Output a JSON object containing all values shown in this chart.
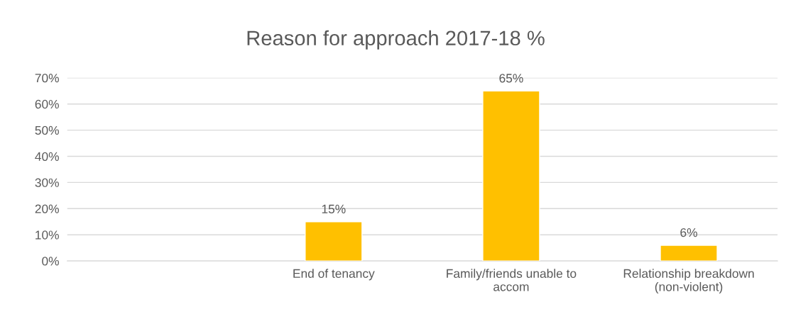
{
  "chart_data": {
    "type": "bar",
    "title": "Reason for approach 2017-18 %",
    "categories": [
      null,
      "End of tenancy",
      "Family/friends unable to accom",
      "Relationship breakdown (non-violent)"
    ],
    "values": [
      null,
      15,
      65,
      6
    ],
    "value_labels": [
      null,
      "15%",
      "65%",
      "6%"
    ],
    "color": "#ffc000",
    "ylim": [
      0,
      70
    ],
    "yticks": [
      {
        "value": 0,
        "label": "0%"
      },
      {
        "value": 10,
        "label": "10%"
      },
      {
        "value": 20,
        "label": "20%"
      },
      {
        "value": 30,
        "label": "30%"
      },
      {
        "value": 40,
        "label": "40%"
      },
      {
        "value": 50,
        "label": "50%"
      },
      {
        "value": 60,
        "label": "60%"
      },
      {
        "value": 70,
        "label": "70%"
      }
    ],
    "grid": "y",
    "legend": false
  }
}
